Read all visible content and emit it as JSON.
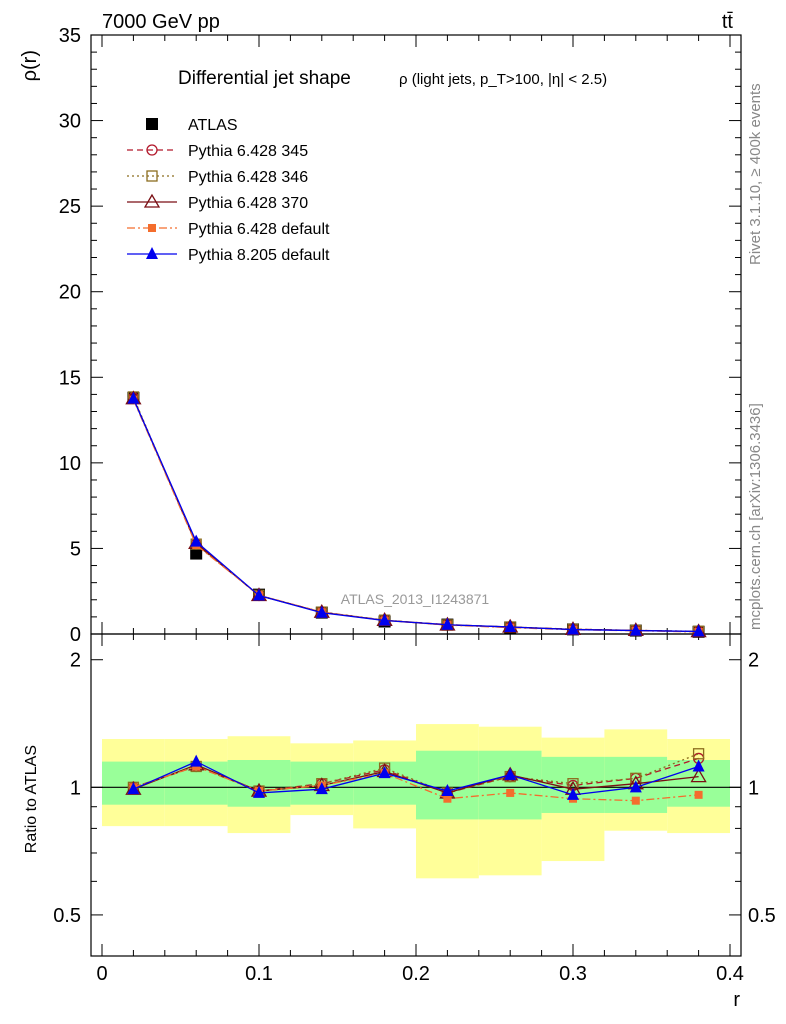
{
  "header": {
    "left": "7000 GeV pp",
    "right": "tt̄",
    "side_top": "Rivet 3.1.10, ≥ 400k events",
    "side_bottom": "mcplots.cern.ch [arXiv:1306.3436]"
  },
  "plot_title": "Differential jet shape",
  "plot_subtitle": "ρ (light jets, p_T>100, |η| < 2.5)",
  "analysis_id": "ATLAS_2013_I1243871",
  "colors": {
    "data": "#000000",
    "py345": "#b2182b",
    "py346": "#8c6d1f",
    "py370": "#7a0f14",
    "pydef": "#f46d2d",
    "py8": "#0000ee",
    "band_inner": "#99ff99",
    "band_outer": "#ffff99"
  },
  "chart_data": [
    {
      "type": "line",
      "panel": "main",
      "title": "Differential jet shape ρ (light jets, p_T>100, |η| < 2.5)",
      "xlabel": "r",
      "ylabel": "ρ(r)",
      "xlim": [
        0,
        0.4
      ],
      "ylim": [
        0,
        35
      ],
      "xticks": [
        "0",
        "0.1",
        "0.2",
        "0.3",
        "0.4"
      ],
      "yticks": [
        "0",
        "5",
        "10",
        "15",
        "20",
        "25",
        "30",
        "35"
      ],
      "x": [
        0.02,
        0.06,
        0.1,
        0.14,
        0.18,
        0.22,
        0.26,
        0.3,
        0.34,
        0.38
      ],
      "legend": "top-left",
      "series": [
        {
          "name": "ATLAS",
          "key": "data",
          "marker": "filled-square",
          "line": "none",
          "values": [
            13.8,
            4.7,
            2.3,
            1.25,
            0.73,
            0.55,
            0.38,
            0.27,
            0.2,
            0.13
          ]
        },
        {
          "name": "Pythia 6.428 345",
          "key": "py345",
          "marker": "open-circle",
          "line": "dashed",
          "values": [
            13.8,
            5.25,
            2.25,
            1.28,
            0.8,
            0.55,
            0.4,
            0.28,
            0.21,
            0.15
          ]
        },
        {
          "name": "Pythia 6.428 346",
          "key": "py346",
          "marker": "open-square",
          "line": "dotted",
          "values": [
            13.85,
            5.25,
            2.26,
            1.28,
            0.81,
            0.53,
            0.41,
            0.28,
            0.21,
            0.16
          ]
        },
        {
          "name": "Pythia 6.428 370",
          "key": "py370",
          "marker": "open-triangle",
          "line": "solid",
          "values": [
            13.75,
            5.3,
            2.25,
            1.27,
            0.8,
            0.53,
            0.41,
            0.27,
            0.21,
            0.14
          ]
        },
        {
          "name": "Pythia 6.428 default",
          "key": "pydef",
          "marker": "filled-small-square",
          "line": "dashdot",
          "values": [
            13.7,
            5.2,
            2.27,
            1.27,
            0.79,
            0.52,
            0.37,
            0.25,
            0.19,
            0.12
          ]
        },
        {
          "name": "Pythia 8.205 default",
          "key": "py8",
          "marker": "filled-triangle",
          "line": "solid",
          "values": [
            13.75,
            5.4,
            2.25,
            1.24,
            0.79,
            0.54,
            0.41,
            0.26,
            0.2,
            0.15
          ]
        }
      ]
    },
    {
      "type": "line",
      "panel": "ratio",
      "xlabel": "r",
      "ylabel": "Ratio to ATLAS",
      "xlim": [
        0,
        0.4
      ],
      "ylim": [
        0.4,
        2.3
      ],
      "yscale": "log",
      "yticks": [
        "0.5",
        "1",
        "2"
      ],
      "x": [
        0.02,
        0.06,
        0.1,
        0.14,
        0.18,
        0.22,
        0.26,
        0.3,
        0.34,
        0.38
      ],
      "bins": [
        [
          0.0,
          0.04
        ],
        [
          0.04,
          0.08
        ],
        [
          0.08,
          0.12
        ],
        [
          0.12,
          0.16
        ],
        [
          0.16,
          0.2
        ],
        [
          0.2,
          0.24
        ],
        [
          0.24,
          0.28
        ],
        [
          0.28,
          0.32
        ],
        [
          0.32,
          0.36
        ],
        [
          0.36,
          0.4
        ]
      ],
      "band_inner": [
        [
          0.91,
          1.15
        ],
        [
          0.91,
          1.15
        ],
        [
          0.9,
          1.16
        ],
        [
          0.91,
          1.15
        ],
        [
          0.91,
          1.15
        ],
        [
          0.84,
          1.22
        ],
        [
          0.84,
          1.22
        ],
        [
          0.87,
          1.18
        ],
        [
          0.87,
          1.18
        ],
        [
          0.9,
          1.16
        ]
      ],
      "band_outer": [
        [
          0.81,
          1.3
        ],
        [
          0.81,
          1.3
        ],
        [
          0.78,
          1.32
        ],
        [
          0.86,
          1.27
        ],
        [
          0.8,
          1.29
        ],
        [
          0.61,
          1.41
        ],
        [
          0.62,
          1.39
        ],
        [
          0.67,
          1.31
        ],
        [
          0.79,
          1.37
        ],
        [
          0.78,
          1.3
        ]
      ],
      "series": [
        {
          "name": "Pythia 6.428 345",
          "key": "py345",
          "values": [
            1.0,
            1.12,
            0.98,
            1.02,
            1.1,
            0.97,
            1.06,
            1.01,
            1.05,
            1.17
          ]
        },
        {
          "name": "Pythia 6.428 346",
          "key": "py346",
          "values": [
            1.0,
            1.12,
            0.98,
            1.02,
            1.11,
            0.97,
            1.06,
            1.02,
            1.05,
            1.2
          ]
        },
        {
          "name": "Pythia 6.428 370",
          "key": "py370",
          "values": [
            0.99,
            1.13,
            0.98,
            1.01,
            1.09,
            0.97,
            1.07,
            0.99,
            1.02,
            1.06
          ]
        },
        {
          "name": "Pythia 6.428 default",
          "key": "pydef",
          "values": [
            1.0,
            1.12,
            0.98,
            1.01,
            1.08,
            0.94,
            0.97,
            0.94,
            0.93,
            0.96
          ]
        },
        {
          "name": "Pythia 8.205 default",
          "key": "py8",
          "values": [
            0.99,
            1.15,
            0.97,
            0.99,
            1.08,
            0.98,
            1.07,
            0.96,
            1.0,
            1.12
          ]
        }
      ]
    }
  ]
}
